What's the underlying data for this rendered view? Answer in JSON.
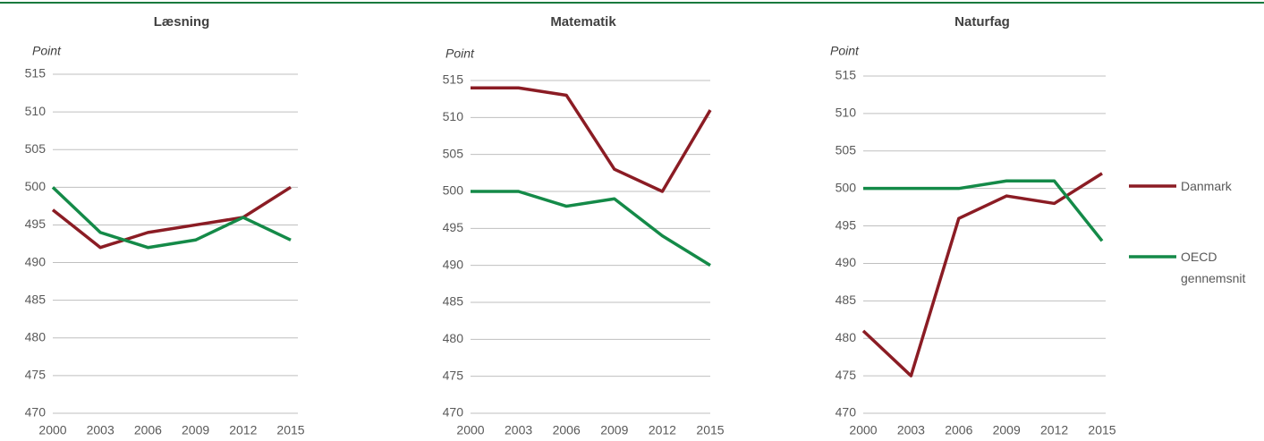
{
  "chart_data": [
    {
      "type": "line",
      "title": "Læsning",
      "y_label": "Point",
      "x": [
        2000,
        2003,
        2006,
        2009,
        2012,
        2015
      ],
      "xlim": [
        2000,
        2015
      ],
      "xticks": [
        2000,
        2003,
        2006,
        2009,
        2012,
        2015
      ],
      "ylim": [
        470,
        515
      ],
      "yticks": [
        470,
        475,
        480,
        485,
        490,
        495,
        500,
        505,
        510,
        515
      ],
      "grid": true,
      "series": [
        {
          "name": "Danmark",
          "color": "#8b1c24",
          "values": [
            497,
            492,
            494,
            495,
            496,
            500
          ]
        },
        {
          "name": "OECD gennemsnit",
          "color": "#148a48",
          "values": [
            500,
            494,
            492,
            493,
            496,
            493
          ]
        }
      ]
    },
    {
      "type": "line",
      "title": "Matematik",
      "y_label": "Point",
      "x": [
        2000,
        2003,
        2006,
        2009,
        2012,
        2015
      ],
      "xlim": [
        2000,
        2015
      ],
      "xticks": [
        2000,
        2003,
        2006,
        2009,
        2012,
        2015
      ],
      "ylim": [
        470,
        515
      ],
      "yticks": [
        470,
        475,
        480,
        485,
        490,
        495,
        500,
        505,
        510,
        515
      ],
      "grid": true,
      "series": [
        {
          "name": "Danmark",
          "color": "#8b1c24",
          "values": [
            514,
            514,
            513,
            503,
            500,
            511
          ]
        },
        {
          "name": "OECD gennemsnit",
          "color": "#148a48",
          "values": [
            500,
            500,
            498,
            499,
            494,
            490
          ]
        }
      ]
    },
    {
      "type": "line",
      "title": "Naturfag",
      "y_label": "Point",
      "x": [
        2000,
        2003,
        2006,
        2009,
        2012,
        2015
      ],
      "xlim": [
        2000,
        2015
      ],
      "xticks": [
        2000,
        2003,
        2006,
        2009,
        2012,
        2015
      ],
      "ylim": [
        470,
        515
      ],
      "yticks": [
        470,
        475,
        480,
        485,
        490,
        495,
        500,
        505,
        510,
        515
      ],
      "grid": true,
      "legend": "right",
      "series": [
        {
          "name": "Danmark",
          "color": "#8b1c24",
          "values": [
            481,
            475,
            496,
            499,
            498,
            502
          ]
        },
        {
          "name": "OECD gennemsnit",
          "color": "#148a48",
          "values": [
            500,
            500,
            500,
            501,
            501,
            493
          ]
        }
      ]
    }
  ]
}
